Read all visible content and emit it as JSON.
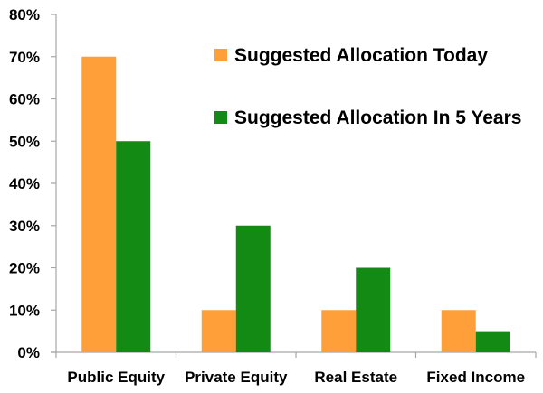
{
  "chart_data": {
    "type": "bar",
    "categories": [
      "Public Equity",
      "Private Equity",
      "Real Estate",
      "Fixed Income"
    ],
    "series": [
      {
        "name": "Suggested Allocation Today",
        "values": [
          70,
          10,
          10,
          10
        ],
        "color": "#FF9F3A"
      },
      {
        "name": "Suggested Allocation In 5 Years",
        "values": [
          50,
          30,
          20,
          5
        ],
        "color": "#138A13"
      }
    ],
    "y_ticks": [
      "0%",
      "10%",
      "20%",
      "30%",
      "40%",
      "50%",
      "60%",
      "70%",
      "80%"
    ],
    "ylim": [
      0,
      80
    ],
    "y_unit": "%",
    "grid": false,
    "legend_position": "top-right",
    "axis_color": "#A6A6A6"
  }
}
